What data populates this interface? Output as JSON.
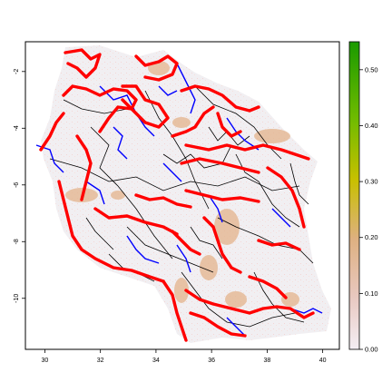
{
  "map": {
    "x_ticks": [
      "30",
      "32",
      "34",
      "36",
      "38",
      "40"
    ],
    "y_ticks": [
      "-2",
      "-4",
      "-6",
      "-8",
      "-10"
    ],
    "x_tick_values": [
      30,
      32,
      34,
      36,
      38,
      40
    ],
    "y_tick_values": [
      -2,
      -4,
      -6,
      -8,
      -10
    ],
    "xlim": [
      29.3,
      40.6
    ],
    "ylim": [
      -11.8,
      -0.95
    ],
    "background_color": "#f1eff2",
    "road_colors": {
      "primary": "#ff0000",
      "secondary": "#0000ff",
      "minor": "#000000"
    }
  },
  "legend": {
    "labels": [
      "0.00",
      "0.10",
      "0.20",
      "0.30",
      "0.40",
      "0.50"
    ],
    "values": [
      0.0,
      0.1,
      0.2,
      0.3,
      0.4,
      0.5
    ],
    "range": [
      0.0,
      0.55
    ],
    "colors": [
      "#f2e8f0",
      "#e6bfa6",
      "#e0c060",
      "#c8c000",
      "#6fb800",
      "#1a9c00"
    ]
  }
}
